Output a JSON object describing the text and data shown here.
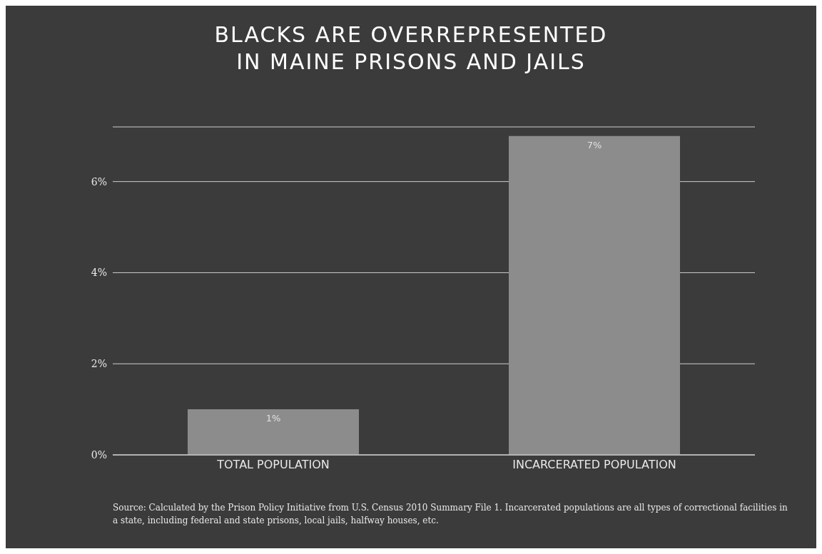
{
  "chart_data": {
    "type": "bar",
    "title": "BLACKS ARE OVERREPRESENTED\nIN MAINE PRISONS AND JAILS",
    "categories": [
      "TOTAL POPULATION",
      "INCARCERATED POPULATION"
    ],
    "values": [
      1,
      7
    ],
    "value_labels": [
      "1%",
      "7%"
    ],
    "color": "#8c8c8c",
    "ylim": [
      0,
      7.2
    ],
    "yticks": [
      {
        "value": 0,
        "label": "0%"
      },
      {
        "value": 2,
        "label": "2%"
      },
      {
        "value": 4,
        "label": "4%"
      },
      {
        "value": 6,
        "label": "6%"
      }
    ],
    "grid": "y",
    "annotations": [
      "Source: Calculated by the Prison Policy Initiative from U.S. Census 2010 Summary File 1. Incarcerated populations are all types of correctional facilities in a state, including federal and state prisons, local jails, halfway houses, etc."
    ]
  }
}
